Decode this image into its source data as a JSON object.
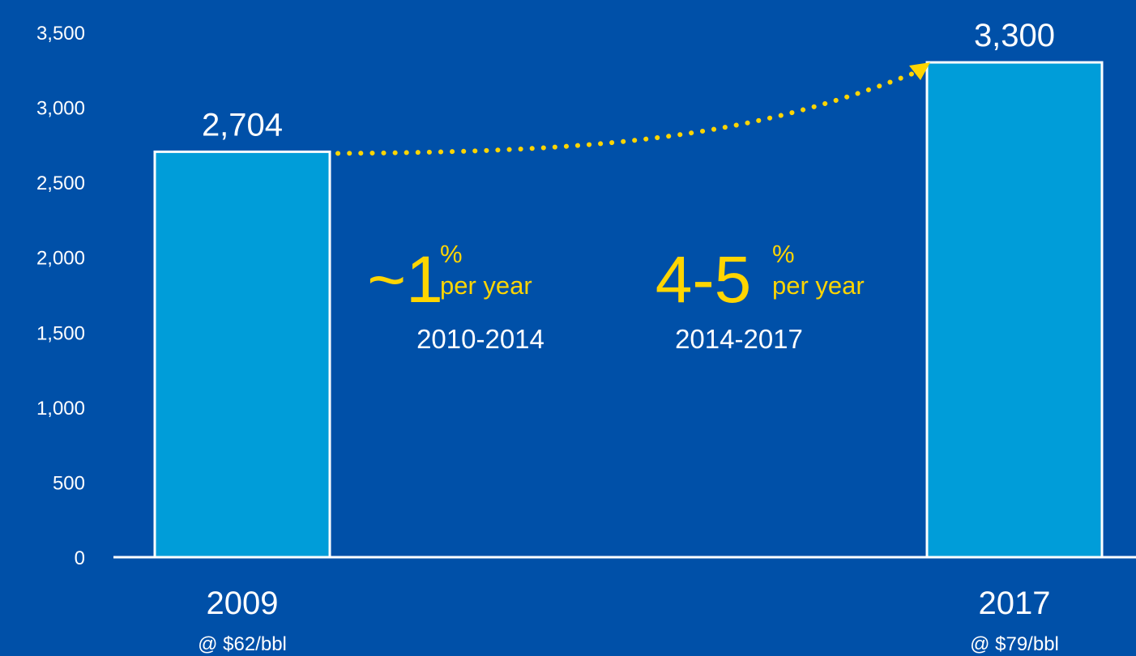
{
  "chart_data": {
    "type": "bar",
    "categories": [
      "2009",
      "2017"
    ],
    "category_sublabels": [
      "@ $62/bbl",
      "@ $79/bbl"
    ],
    "values": [
      2704,
      3300
    ],
    "data_labels": [
      "2,704",
      "3,300"
    ],
    "ylim": [
      0,
      3500
    ],
    "yticks": [
      {
        "value": 0,
        "label": "0"
      },
      {
        "value": 500,
        "label": "500"
      },
      {
        "value": 1000,
        "label": "1,000"
      },
      {
        "value": 1500,
        "label": "1,500"
      },
      {
        "value": 2000,
        "label": "2,000"
      },
      {
        "value": 2500,
        "label": "2,500"
      },
      {
        "value": 3000,
        "label": "3,000"
      },
      {
        "value": 3500,
        "label": "3,500"
      }
    ],
    "grid": false,
    "title": "",
    "xlabel": "",
    "ylabel": "",
    "annotations": [
      {
        "big": "~1",
        "percent": "%",
        "unit": "per year",
        "period": "2010-2014"
      },
      {
        "big": "4-5",
        "percent": "%",
        "unit": "per year",
        "period": "2014-2017"
      }
    ],
    "colors": {
      "background": "#0050A8",
      "bar": "#009DD9",
      "bar_outline": "#FFFFFF",
      "accent": "#FFD500",
      "text": "#FFFFFF"
    }
  }
}
